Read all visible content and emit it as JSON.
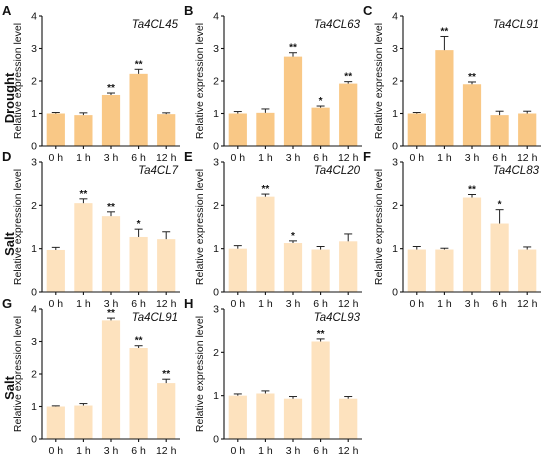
{
  "row_labels": [
    "Drought",
    "Salt",
    "Salt"
  ],
  "ylabel": "Relative expression level",
  "chart_data": [
    {
      "type": "bar",
      "panel": "A",
      "title": "Ta4CL45",
      "ylabel": "Relative expression level",
      "categories": [
        "0 h",
        "1 h",
        "3 h",
        "6 h",
        "12 h"
      ],
      "values": [
        1.0,
        0.95,
        1.57,
        2.22,
        0.98
      ],
      "errors": [
        0.03,
        0.07,
        0.06,
        0.14,
        0.04
      ],
      "significance": [
        "",
        "",
        "**",
        "**",
        ""
      ],
      "ylim": [
        0,
        4
      ],
      "yticks": [
        0,
        1,
        2,
        3,
        4
      ],
      "color": "#F9C886"
    },
    {
      "type": "bar",
      "panel": "B",
      "title": "Ta4CL63",
      "ylabel": "Relative expression level",
      "categories": [
        "0 h",
        "1 h",
        "3 h",
        "6 h",
        "12 h"
      ],
      "values": [
        1.0,
        1.02,
        2.75,
        1.18,
        1.92
      ],
      "errors": [
        0.06,
        0.12,
        0.12,
        0.05,
        0.06
      ],
      "significance": [
        "",
        "",
        "**",
        "*",
        "**"
      ],
      "ylim": [
        0,
        4
      ],
      "yticks": [
        0,
        1,
        2,
        3,
        4
      ],
      "color": "#F9C886"
    },
    {
      "type": "bar",
      "panel": "C",
      "title": "Ta4CL91",
      "ylabel": "Relative expression level",
      "categories": [
        "0 h",
        "1 h",
        "3 h",
        "6 h",
        "12 h"
      ],
      "values": [
        1.0,
        2.95,
        1.9,
        0.95,
        1.0
      ],
      "errors": [
        0.03,
        0.42,
        0.07,
        0.12,
        0.07
      ],
      "significance": [
        "",
        "**",
        "**",
        "",
        ""
      ],
      "ylim": [
        0,
        4
      ],
      "yticks": [
        0,
        1,
        2,
        3,
        4
      ],
      "color": "#F9C886"
    },
    {
      "type": "bar",
      "panel": "D",
      "title": "Ta4CL7",
      "ylabel": "Relative expression level",
      "categories": [
        "0 h",
        "1 h",
        "3 h",
        "6 h",
        "12 h"
      ],
      "values": [
        0.97,
        2.05,
        1.75,
        1.27,
        1.22
      ],
      "errors": [
        0.06,
        0.1,
        0.1,
        0.18,
        0.17
      ],
      "significance": [
        "",
        "**",
        "**",
        "*",
        ""
      ],
      "ylim": [
        0,
        3
      ],
      "yticks": [
        0,
        1,
        2,
        3
      ],
      "color": "#FDE2BE"
    },
    {
      "type": "bar",
      "panel": "E",
      "title": "Ta4CL20",
      "ylabel": "Relative expression level",
      "categories": [
        "0 h",
        "1 h",
        "3 h",
        "6 h",
        "12 h"
      ],
      "values": [
        1.0,
        2.2,
        1.13,
        0.98,
        1.17
      ],
      "errors": [
        0.07,
        0.06,
        0.05,
        0.07,
        0.17
      ],
      "significance": [
        "",
        "**",
        "*",
        "",
        ""
      ],
      "ylim": [
        0,
        3
      ],
      "yticks": [
        0,
        1,
        2,
        3
      ],
      "color": "#FDE2BE"
    },
    {
      "type": "bar",
      "panel": "F",
      "title": "Ta4CL83",
      "ylabel": "Relative expression level",
      "categories": [
        "0 h",
        "1 h",
        "3 h",
        "6 h",
        "12 h"
      ],
      "values": [
        0.98,
        0.98,
        2.18,
        1.58,
        0.98
      ],
      "errors": [
        0.07,
        0.03,
        0.07,
        0.32,
        0.06
      ],
      "significance": [
        "",
        "",
        "**",
        "*",
        ""
      ],
      "ylim": [
        0,
        3
      ],
      "yticks": [
        0,
        1,
        2,
        3
      ],
      "color": "#FDE2BE"
    },
    {
      "type": "bar",
      "panel": "G",
      "title": "Ta4CL91",
      "ylabel": "Relative expression level",
      "categories": [
        "0 h",
        "1 h",
        "3 h",
        "6 h",
        "12 h"
      ],
      "values": [
        1.0,
        1.03,
        3.65,
        2.8,
        1.72
      ],
      "errors": [
        0.02,
        0.06,
        0.07,
        0.07,
        0.12
      ],
      "significance": [
        "",
        "",
        "**",
        "**",
        "**"
      ],
      "ylim": [
        0,
        4
      ],
      "yticks": [
        0,
        1,
        2,
        3,
        4
      ],
      "color": "#FDE2BE"
    },
    {
      "type": "bar",
      "panel": "H",
      "title": "Ta4CL93",
      "ylabel": "Relative expression level",
      "categories": [
        "0 h",
        "1 h",
        "3 h",
        "6 h",
        "12 h"
      ],
      "values": [
        1.0,
        1.05,
        0.93,
        2.25,
        0.93
      ],
      "errors": [
        0.04,
        0.06,
        0.05,
        0.06,
        0.05
      ],
      "significance": [
        "",
        "",
        "",
        "**",
        ""
      ],
      "ylim": [
        0,
        3
      ],
      "yticks": [
        0,
        1,
        2,
        3
      ],
      "color": "#FDE2BE"
    }
  ]
}
